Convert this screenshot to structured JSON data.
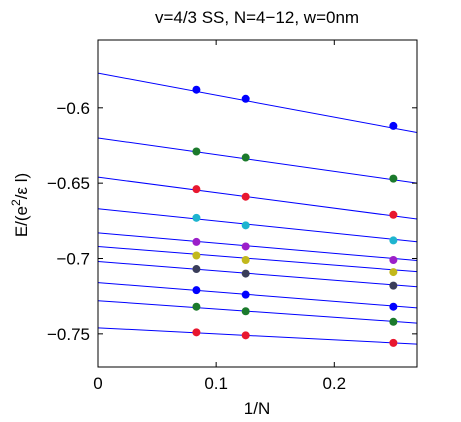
{
  "chart_data": {
    "type": "scatter",
    "title": "v=4/3 SS, N=4−12, w=0nm",
    "xlabel": "1/N",
    "ylabel_parts": {
      "prefix": "E/(e",
      "superscript": "2",
      "suffix": "/ε l)"
    },
    "xlim": [
      0,
      0.27
    ],
    "ylim": [
      -0.772,
      -0.555
    ],
    "grid": false,
    "legend": "none",
    "xticks": [
      0,
      0.1,
      0.2
    ],
    "xtick_labels": [
      "0",
      "0.1",
      "0.2"
    ],
    "yticks": [
      -0.6,
      -0.65,
      -0.7,
      -0.75
    ],
    "ytick_labels": [
      "−0.6",
      "−0.65",
      "−0.7",
      "−0.75"
    ],
    "x": [
      0.0833,
      0.125,
      0.25
    ],
    "line_color": "#0000ff",
    "series": [
      {
        "color": "#0000ff",
        "values": [
          -0.588,
          -0.594,
          -0.612
        ],
        "fit": {
          "intercept": -0.577,
          "slope": -0.146
        }
      },
      {
        "color": "#1b7a2c",
        "values": [
          -0.629,
          -0.633,
          -0.647
        ],
        "fit": {
          "intercept": -0.62,
          "slope": -0.111
        }
      },
      {
        "color": "#e8172f",
        "values": [
          -0.654,
          -0.659,
          -0.671
        ],
        "fit": {
          "intercept": -0.646,
          "slope": -0.103
        }
      },
      {
        "color": "#1eb4cf",
        "values": [
          -0.673,
          -0.678,
          -0.688
        ],
        "fit": {
          "intercept": -0.667,
          "slope": -0.081
        }
      },
      {
        "color": "#9b1fc9",
        "values": [
          -0.689,
          -0.692,
          -0.701
        ],
        "fit": {
          "intercept": -0.683,
          "slope": -0.068
        }
      },
      {
        "color": "#c2b81c",
        "values": [
          -0.698,
          -0.701,
          -0.709
        ],
        "fit": {
          "intercept": -0.692,
          "slope": -0.062
        }
      },
      {
        "color": "#3a3d59",
        "values": [
          -0.707,
          -0.71,
          -0.718
        ],
        "fit": {
          "intercept": -0.702,
          "slope": -0.062
        }
      },
      {
        "color": "#0000ff",
        "values": [
          -0.721,
          -0.724,
          -0.732
        ],
        "fit": {
          "intercept": -0.716,
          "slope": -0.062
        }
      },
      {
        "color": "#1b7a2c",
        "values": [
          -0.732,
          -0.735,
          -0.742
        ],
        "fit": {
          "intercept": -0.728,
          "slope": -0.055
        }
      },
      {
        "color": "#e8172f",
        "values": [
          -0.749,
          -0.751,
          -0.756
        ],
        "fit": {
          "intercept": -0.746,
          "slope": -0.04
        }
      }
    ]
  }
}
